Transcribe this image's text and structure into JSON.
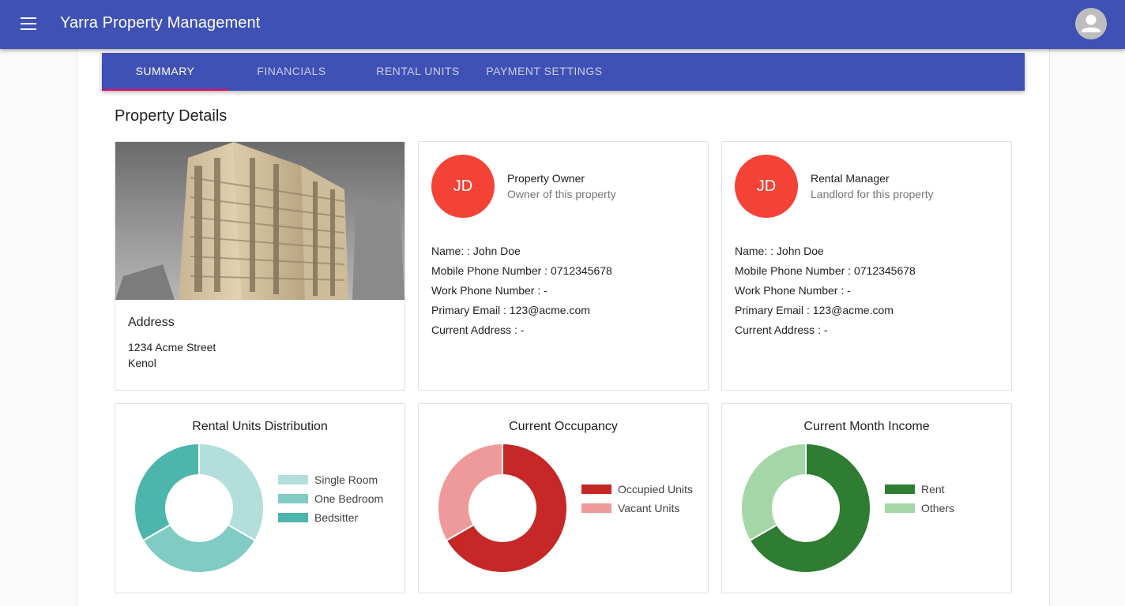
{
  "appbar": {
    "title": "Yarra Property Management",
    "menu_icon": "menu-icon",
    "avatar_icon": "account-icon"
  },
  "tabs": [
    {
      "label": "SUMMARY",
      "active": true
    },
    {
      "label": "FINANCIALS",
      "active": false
    },
    {
      "label": "RENTAL UNITS",
      "active": false
    },
    {
      "label": "PAYMENT SETTINGS",
      "active": false
    }
  ],
  "section_title": "Property Details",
  "property": {
    "photo": "building-photo",
    "address_label": "Address",
    "address_lines": [
      "1234 Acme Street",
      "Kenol"
    ]
  },
  "owner": {
    "initials": "JD",
    "role": "Property Owner",
    "role_desc": "Owner of this property",
    "fields": [
      "Name: : John Doe",
      "Mobile Phone Number : 0712345678",
      "Work Phone Number : -",
      "Primary Email : 123@acme.com",
      "Current Address : -"
    ]
  },
  "manager": {
    "initials": "JD",
    "role": "Rental Manager",
    "role_desc": "Landlord for this property",
    "fields": [
      "Name: : John Doe",
      "Mobile Phone Number : 0712345678",
      "Work Phone Number : -",
      "Primary Email : 123@acme.com",
      "Current Address : -"
    ]
  },
  "colors": {
    "primary": "#3f51b5",
    "accent": "#f50057",
    "avatar": "#f44336"
  },
  "chart_data": [
    {
      "type": "pie",
      "title": "Rental Units Distribution",
      "categories": [
        "Single Room",
        "One Bedroom",
        "Bedsitter"
      ],
      "values": [
        1,
        1,
        1
      ],
      "colors": [
        "#b2dfdb",
        "#80cbc4",
        "#4db6ac"
      ],
      "legend": "right"
    },
    {
      "type": "pie",
      "title": "Current Occupancy",
      "categories": [
        "Occupied Units",
        "Vacant Units"
      ],
      "values": [
        2,
        1
      ],
      "colors": [
        "#c62828",
        "#ef9a9a"
      ],
      "legend": "right"
    },
    {
      "type": "pie",
      "title": "Current Month Income",
      "categories": [
        "Rent",
        "Others"
      ],
      "values": [
        2,
        1
      ],
      "colors": [
        "#2e7d32",
        "#a5d6a7"
      ],
      "legend": "right"
    }
  ]
}
